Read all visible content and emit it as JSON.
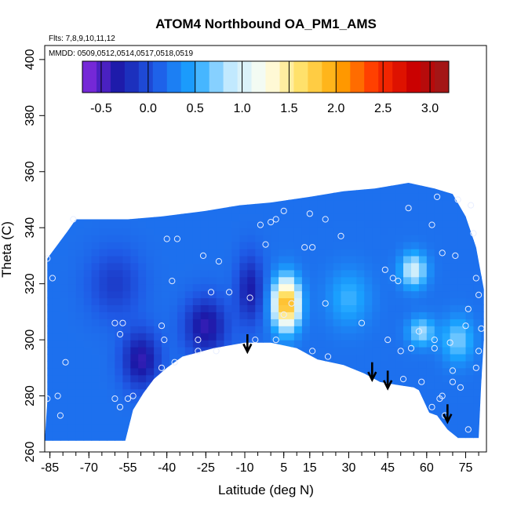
{
  "chart_data": {
    "type": "heatmap",
    "title": "ATOM4 Northbound OA_PM1_AMS",
    "subtitle_flights": "Flts: 7,8,9,10,11,12",
    "subtitle_dates": "MMDD: 0509,0512,0514,0517,0518,0519",
    "xlabel": "Latitude (deg N)",
    "ylabel": "Theta (C)",
    "xlim": [
      -87,
      83
    ],
    "ylim": [
      260,
      405
    ],
    "x_ticks": [
      -85,
      -70,
      -55,
      -40,
      -25,
      -10,
      5,
      15,
      30,
      45,
      60,
      75
    ],
    "x_tick_labels": [
      "-85",
      "-70",
      "-55",
      "-40",
      "-25",
      "-10",
      "5",
      "15",
      "30",
      "45",
      "60",
      "75"
    ],
    "y_ticks": [
      260,
      280,
      300,
      320,
      340,
      360,
      380,
      400
    ],
    "y_tick_labels": [
      "260",
      "280",
      "300",
      "320",
      "340",
      "360",
      "380",
      "400"
    ],
    "colorbar": {
      "range": [
        -0.7,
        3.2
      ],
      "ticks": [
        -0.5,
        0.0,
        0.5,
        1.0,
        1.5,
        2.0,
        2.5,
        3.0
      ],
      "tick_labels": [
        "-0.5",
        "0.0",
        "0.5",
        "1.0",
        "1.5",
        "2.0",
        "2.5",
        "3.0"
      ],
      "colors": [
        "#8b2be2",
        "#1a1aa8",
        "#1f5ae6",
        "#1aa3ff",
        "#bfe8ff",
        "#fffff0",
        "#ffe066",
        "#ffa500",
        "#ff3300",
        "#cc0000",
        "#9b1b1b"
      ]
    },
    "background_value": 0.2,
    "hotspots": [
      {
        "lat": 6,
        "theta": 313,
        "value": 2.0,
        "spread_lat": 5,
        "spread_theta": 9
      },
      {
        "lat": 55,
        "theta": 325,
        "value": 1.0,
        "spread_lat": 5,
        "spread_theta": 6
      },
      {
        "lat": 58,
        "theta": 303,
        "value": 0.8,
        "spread_lat": 5,
        "spread_theta": 5
      },
      {
        "lat": 72,
        "theta": 300,
        "value": 0.7,
        "spread_lat": 6,
        "spread_theta": 8
      },
      {
        "lat": 30,
        "theta": 315,
        "value": 0.55,
        "spread_lat": 8,
        "spread_theta": 10
      },
      {
        "lat": -25,
        "theta": 305,
        "value": -0.4,
        "spread_lat": 8,
        "spread_theta": 10
      },
      {
        "lat": -50,
        "theta": 293,
        "value": -0.4,
        "spread_lat": 7,
        "spread_theta": 10
      },
      {
        "lat": -8,
        "theta": 318,
        "value": -0.3,
        "spread_lat": 5,
        "spread_theta": 12
      },
      {
        "lat": -60,
        "theta": 320,
        "value": -0.1,
        "spread_lat": 10,
        "spread_theta": 12
      }
    ],
    "domain_outline": [
      [
        -86,
        278
      ],
      [
        -86,
        329
      ],
      [
        -78,
        339
      ],
      [
        -75,
        343
      ],
      [
        -65,
        343
      ],
      [
        -55,
        343
      ],
      [
        -42,
        344
      ],
      [
        -25,
        346
      ],
      [
        -12,
        348
      ],
      [
        0,
        349
      ],
      [
        15,
        351
      ],
      [
        28,
        353
      ],
      [
        40,
        354
      ],
      [
        53,
        356
      ],
      [
        63,
        354
      ],
      [
        70,
        352
      ],
      [
        75,
        344
      ],
      [
        79,
        333
      ],
      [
        82,
        318
      ],
      [
        82,
        300
      ],
      [
        81,
        285
      ],
      [
        80,
        265
      ],
      [
        72,
        265
      ],
      [
        68,
        268
      ],
      [
        64,
        273
      ],
      [
        61,
        274
      ],
      [
        58,
        280
      ],
      [
        57,
        282
      ],
      [
        55,
        283
      ],
      [
        48,
        284
      ],
      [
        42,
        285
      ],
      [
        36,
        288
      ],
      [
        28,
        291
      ],
      [
        18,
        293
      ],
      [
        10,
        297
      ],
      [
        0,
        299
      ],
      [
        -10,
        299
      ],
      [
        -22,
        297
      ],
      [
        -34,
        294
      ],
      [
        -40,
        290
      ],
      [
        -45,
        286
      ],
      [
        -49,
        281
      ],
      [
        -51,
        278
      ],
      [
        -53,
        275
      ],
      [
        -56,
        264
      ],
      [
        -87,
        264
      ]
    ],
    "samples": [
      [
        -86,
        329
      ],
      [
        -84,
        322
      ],
      [
        -86,
        279
      ],
      [
        -82,
        280
      ],
      [
        -81,
        273
      ],
      [
        -79,
        292
      ],
      [
        -76,
        343
      ],
      [
        -60,
        306
      ],
      [
        -57,
        306
      ],
      [
        -58,
        302
      ],
      [
        -53,
        280
      ],
      [
        -55,
        279
      ],
      [
        -60,
        279
      ],
      [
        -58,
        276
      ],
      [
        -40,
        336
      ],
      [
        -36,
        336
      ],
      [
        -38,
        321
      ],
      [
        -42,
        305
      ],
      [
        -41,
        300
      ],
      [
        -42,
        290
      ],
      [
        -37,
        292
      ],
      [
        -28,
        300
      ],
      [
        -28,
        296
      ],
      [
        -21,
        296
      ],
      [
        -23,
        317
      ],
      [
        -16,
        317
      ],
      [
        -20,
        328
      ],
      [
        -26,
        330
      ],
      [
        -4,
        341
      ],
      [
        0,
        342
      ],
      [
        2,
        343
      ],
      [
        5,
        346
      ],
      [
        -2,
        334
      ],
      [
        -8,
        315
      ],
      [
        -6,
        300
      ],
      [
        2,
        300
      ],
      [
        5,
        309
      ],
      [
        8,
        313
      ],
      [
        13,
        333
      ],
      [
        16,
        333
      ],
      [
        15,
        345
      ],
      [
        21,
        343
      ],
      [
        21,
        313
      ],
      [
        27,
        337
      ],
      [
        16,
        296
      ],
      [
        22,
        294
      ],
      [
        35,
        306
      ],
      [
        44,
        325
      ],
      [
        47,
        322
      ],
      [
        49,
        321
      ],
      [
        51,
        286
      ],
      [
        53,
        347
      ],
      [
        45,
        300
      ],
      [
        50,
        296
      ],
      [
        58,
        285
      ],
      [
        54,
        297
      ],
      [
        63,
        297
      ],
      [
        63,
        300
      ],
      [
        62,
        276
      ],
      [
        66,
        280
      ],
      [
        67,
        273
      ],
      [
        69,
        299
      ],
      [
        70,
        285
      ],
      [
        70,
        289
      ],
      [
        72,
        350
      ],
      [
        73,
        283
      ],
      [
        75,
        305
      ],
      [
        76,
        311
      ],
      [
        78,
        338
      ],
      [
        79,
        322
      ],
      [
        80,
        316
      ],
      [
        80,
        296
      ],
      [
        81,
        304
      ],
      [
        62,
        341
      ],
      [
        64,
        351
      ],
      [
        71,
        330
      ],
      [
        77,
        348
      ],
      [
        66,
        331
      ],
      [
        57,
        303
      ],
      [
        65,
        279
      ],
      [
        76,
        268
      ],
      [
        79,
        290
      ]
    ],
    "arrows": [
      {
        "lat": -9,
        "theta_top": 302,
        "theta_tip": 296
      },
      {
        "lat": 39,
        "theta_top": 292,
        "theta_tip": 286
      },
      {
        "lat": 45,
        "theta_top": 289,
        "theta_tip": 283
      },
      {
        "lat": 68,
        "theta_top": 277,
        "theta_tip": 271
      }
    ],
    "grid": false,
    "legend": "colorbar-top-inside"
  }
}
